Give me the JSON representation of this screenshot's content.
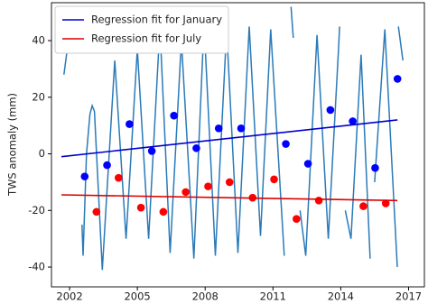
{
  "chart_data": {
    "type": "line",
    "ylabel": "TWS anomaly (mm)",
    "xlim": [
      2001.2,
      2017.7
    ],
    "ylim": [
      -47,
      53.4
    ],
    "xticks": [
      2002,
      2005,
      2008,
      2011,
      2014,
      2017
    ],
    "yticks": [
      -40,
      -20,
      0,
      20,
      40
    ],
    "legend": "upper left",
    "series": [
      {
        "type": "line",
        "color": "#2a7ab8",
        "x": [
          2001.75,
          2001.9,
          null,
          2002.55,
          2002.6,
          2002.75,
          2002.9,
          2003.0,
          2003.1,
          2003.45,
          2004.0,
          2004.5,
          2005.0,
          2005.5,
          2006.0,
          2006.45,
          2006.95,
          2007.5,
          2007.95,
          2008.45,
          2008.95,
          2009.45,
          2009.95,
          2010.45,
          2010.9,
          2011.5,
          null,
          2011.8,
          2011.9,
          null,
          2012.2,
          2012.45,
          2012.95,
          2013.45,
          2013.9,
          2013.95,
          null,
          2014.2,
          2014.45,
          2014.9,
          2015.3,
          null,
          2015.5,
          2015.95,
          2016.5,
          null,
          2016.55,
          2016.75
        ],
        "values": [
          28,
          37,
          null,
          -25,
          -36,
          0,
          14,
          17,
          15,
          -41,
          33,
          -30,
          37,
          -30,
          45,
          -35,
          40,
          -37,
          46,
          -36,
          44,
          -35,
          45,
          -29,
          44,
          -36,
          null,
          52,
          41,
          null,
          -20,
          -36,
          42,
          -30,
          37,
          45,
          null,
          -20,
          -30,
          35,
          -37,
          null,
          -10,
          44,
          -40,
          null,
          45,
          33
        ]
      },
      {
        "type": "scatter",
        "color": "#0000ff",
        "x": [
          2002.67,
          2003.66,
          2004.65,
          2005.64,
          2006.62,
          2007.61,
          2008.6,
          2009.59,
          2011.57,
          2012.55,
          2013.54,
          2014.53,
          2015.52,
          2016.51
        ],
        "values": [
          -8,
          -4,
          10.5,
          1,
          13.5,
          2,
          9,
          9,
          3.5,
          -3.5,
          15.5,
          11.5,
          -5,
          26.5
        ]
      },
      {
        "type": "scatter",
        "color": "#ff0000",
        "x": [
          2003.19,
          2004.17,
          2005.16,
          2006.15,
          2007.14,
          2008.13,
          2009.08,
          2010.1,
          2011.05,
          2012.04,
          2013.03,
          2015.0,
          2015.99
        ],
        "values": [
          -20.5,
          -8.5,
          -19,
          -20.5,
          -13.5,
          -11.5,
          -10,
          -15.5,
          -9,
          -23,
          -16.5,
          -18.5,
          -17.5
        ]
      },
      {
        "type": "line",
        "name": "Regression fit for January",
        "color": "#0000cc",
        "x": [
          2001.64,
          2016.51
        ],
        "values": [
          -1,
          12
        ]
      },
      {
        "type": "line",
        "name": "Regression fit for July",
        "color": "#dd0000",
        "x": [
          2001.64,
          2016.51
        ],
        "values": [
          -14.5,
          -16.5
        ]
      }
    ]
  }
}
